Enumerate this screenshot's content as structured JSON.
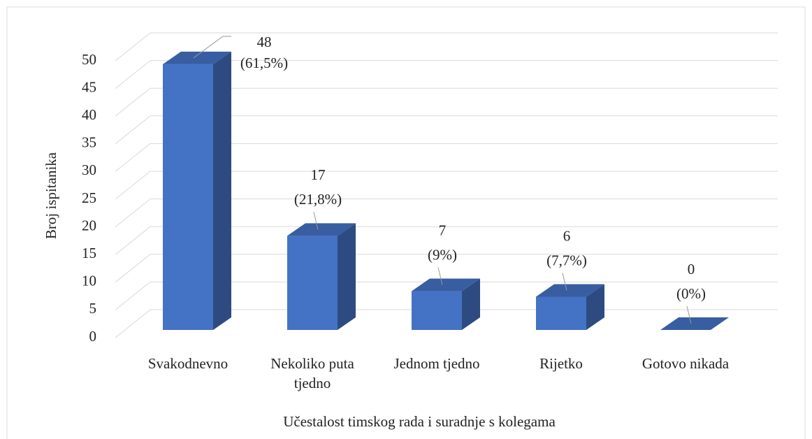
{
  "chart_data": {
    "type": "bar3d",
    "x_label": "Učestalost timskog rada i suradnje s kolegama",
    "y_label": "Broj ispitanika",
    "categories": [
      "Svakodnevno",
      "Nekoliko puta tjedno",
      "Jednom tjedno",
      "Rijetko",
      "Gotovo nikada"
    ],
    "values": [
      48,
      17,
      7,
      6,
      0
    ],
    "value_labels": [
      [
        "48",
        "(61,5%)"
      ],
      [
        "17",
        "(21,8%)"
      ],
      [
        "7",
        "(9%)"
      ],
      [
        "6",
        "(7,7%)"
      ],
      [
        "0",
        "(0%)"
      ]
    ],
    "color": "#4472c4",
    "ylim": [
      0,
      50
    ],
    "yticks": [
      0,
      5,
      10,
      15,
      20,
      25,
      30,
      35,
      40,
      45,
      50
    ],
    "grid": true
  }
}
